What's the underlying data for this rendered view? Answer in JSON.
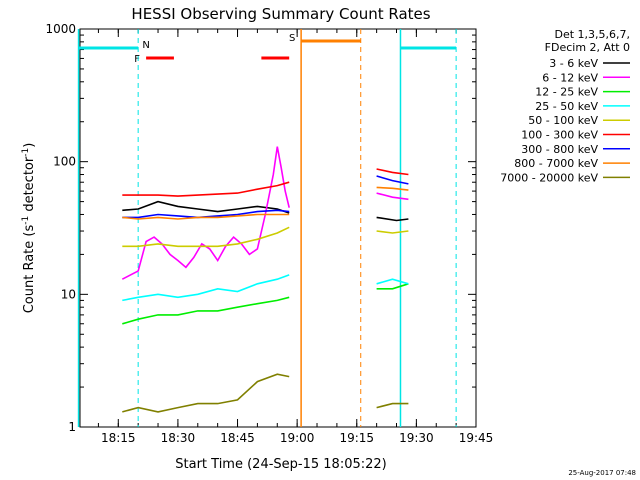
{
  "chart_data": {
    "type": "line",
    "title": "HESSI Observing Summary Count Rates",
    "xlabel": "Start Time (24-Sep-15 18:05:22)",
    "ylabel_main": "Count Rate (s",
    "ylabel_sup1": "-1",
    "ylabel_mid": " detector",
    "ylabel_sup2": "-1",
    "ylabel_end": ")",
    "yscale": "log",
    "xlim": [
      "18:05:22",
      "19:45:00"
    ],
    "ylim": [
      1,
      1000
    ],
    "x_ticks": [
      "18:15",
      "18:30",
      "18:45",
      "19:00",
      "19:15",
      "19:30",
      "19:45"
    ],
    "y_ticks": [
      "1",
      "10",
      "100",
      "1000"
    ],
    "legend_header": [
      "Det 1,3,5,6,7,",
      "FDecim 2, Att 0"
    ],
    "legend_position": "right",
    "timestamp": "25-Aug-2017 07:48",
    "flags": [
      {
        "label": "F",
        "color": "#ff0000",
        "intervals": [
          [
            "18:22",
            "18:29"
          ],
          [
            "18:51",
            "18:58"
          ]
        ]
      },
      {
        "label": "N",
        "color": "#00e5e5",
        "intervals": [
          [
            "18:05",
            "18:20"
          ],
          [
            "19:26",
            "19:40"
          ]
        ]
      },
      {
        "label": "S",
        "color": "#ff8000",
        "intervals": [
          [
            "19:01",
            "19:16"
          ]
        ]
      }
    ],
    "series": [
      {
        "name": "3 - 6 keV",
        "color": "#000000"
      },
      {
        "name": "6 - 12 keV",
        "color": "#ff00ff"
      },
      {
        "name": "12 - 25 keV",
        "color": "#00ee00"
      },
      {
        "name": "25 - 50 keV",
        "color": "#00ffff"
      },
      {
        "name": "50 - 100 keV",
        "color": "#cccc00"
      },
      {
        "name": "100 - 300 keV",
        "color": "#ff0000"
      },
      {
        "name": "300 - 800 keV",
        "color": "#0000ff"
      },
      {
        "name": "800 - 7000 keV",
        "color": "#ff8000"
      },
      {
        "name": "7000 - 20000 keV",
        "color": "#808000"
      }
    ],
    "data": {
      "3 - 6 keV": [
        [
          "18:16",
          43
        ],
        [
          "18:20",
          44
        ],
        [
          "18:25",
          50
        ],
        [
          "18:30",
          46
        ],
        [
          "18:35",
          44
        ],
        [
          "18:40",
          42
        ],
        [
          "18:45",
          44
        ],
        [
          "18:50",
          46
        ],
        [
          "18:55",
          44
        ],
        [
          "18:58",
          41
        ],
        [
          "19:20",
          38
        ],
        [
          "19:25",
          36
        ],
        [
          "19:28",
          37
        ]
      ],
      "6 - 12 keV": [
        [
          "18:16",
          13
        ],
        [
          "18:20",
          15
        ],
        [
          "18:22",
          25
        ],
        [
          "18:24",
          27
        ],
        [
          "18:26",
          24
        ],
        [
          "18:28",
          20
        ],
        [
          "18:30",
          18
        ],
        [
          "18:32",
          16
        ],
        [
          "18:34",
          19
        ],
        [
          "18:36",
          24
        ],
        [
          "18:38",
          22
        ],
        [
          "18:40",
          18
        ],
        [
          "18:42",
          23
        ],
        [
          "18:44",
          27
        ],
        [
          "18:46",
          24
        ],
        [
          "18:48",
          20
        ],
        [
          "18:50",
          22
        ],
        [
          "18:52",
          40
        ],
        [
          "18:54",
          80
        ],
        [
          "18:55",
          130
        ],
        [
          "18:56",
          90
        ],
        [
          "18:57",
          60
        ],
        [
          "18:58",
          45
        ],
        [
          "19:20",
          58
        ],
        [
          "19:24",
          54
        ],
        [
          "19:28",
          52
        ]
      ],
      "12 - 25 keV": [
        [
          "18:16",
          6
        ],
        [
          "18:20",
          6.5
        ],
        [
          "18:25",
          7
        ],
        [
          "18:30",
          7
        ],
        [
          "18:35",
          7.5
        ],
        [
          "18:40",
          7.5
        ],
        [
          "18:45",
          8
        ],
        [
          "18:50",
          8.5
        ],
        [
          "18:55",
          9
        ],
        [
          "18:58",
          9.5
        ],
        [
          "19:20",
          11
        ],
        [
          "19:24",
          11
        ],
        [
          "19:28",
          12
        ]
      ],
      "25 - 50 keV": [
        [
          "18:16",
          9
        ],
        [
          "18:20",
          9.5
        ],
        [
          "18:25",
          10
        ],
        [
          "18:30",
          9.5
        ],
        [
          "18:35",
          10
        ],
        [
          "18:40",
          11
        ],
        [
          "18:45",
          10.5
        ],
        [
          "18:50",
          12
        ],
        [
          "18:55",
          13
        ],
        [
          "18:58",
          14
        ],
        [
          "19:20",
          12
        ],
        [
          "19:24",
          13
        ],
        [
          "19:28",
          12
        ]
      ],
      "50 - 100 keV": [
        [
          "18:16",
          23
        ],
        [
          "18:20",
          23
        ],
        [
          "18:25",
          24
        ],
        [
          "18:30",
          23
        ],
        [
          "18:35",
          23
        ],
        [
          "18:40",
          23
        ],
        [
          "18:45",
          24
        ],
        [
          "18:50",
          26
        ],
        [
          "18:55",
          29
        ],
        [
          "18:58",
          32
        ],
        [
          "19:20",
          30
        ],
        [
          "19:24",
          29
        ],
        [
          "19:28",
          30
        ]
      ],
      "100 - 300 keV": [
        [
          "18:16",
          56
        ],
        [
          "18:20",
          56
        ],
        [
          "18:25",
          56
        ],
        [
          "18:30",
          55
        ],
        [
          "18:35",
          56
        ],
        [
          "18:40",
          57
        ],
        [
          "18:45",
          58
        ],
        [
          "18:50",
          62
        ],
        [
          "18:55",
          66
        ],
        [
          "18:58",
          70
        ],
        [
          "19:20",
          88
        ],
        [
          "19:24",
          83
        ],
        [
          "19:28",
          80
        ]
      ],
      "300 - 800 keV": [
        [
          "18:16",
          38
        ],
        [
          "18:20",
          38
        ],
        [
          "18:25",
          40
        ],
        [
          "18:30",
          39
        ],
        [
          "18:35",
          38
        ],
        [
          "18:40",
          39
        ],
        [
          "18:45",
          40
        ],
        [
          "18:50",
          42
        ],
        [
          "18:55",
          43
        ],
        [
          "18:58",
          42
        ],
        [
          "19:20",
          78
        ],
        [
          "19:24",
          72
        ],
        [
          "19:28",
          68
        ]
      ],
      "800 - 7000 keV": [
        [
          "18:16",
          38
        ],
        [
          "18:20",
          37
        ],
        [
          "18:25",
          38
        ],
        [
          "18:30",
          37
        ],
        [
          "18:35",
          38
        ],
        [
          "18:40",
          38
        ],
        [
          "18:45",
          39
        ],
        [
          "18:50",
          40
        ],
        [
          "18:55",
          40
        ],
        [
          "18:58",
          40
        ],
        [
          "19:20",
          64
        ],
        [
          "19:24",
          63
        ],
        [
          "19:28",
          61
        ]
      ],
      "7000 - 20000 keV": [
        [
          "18:16",
          1.3
        ],
        [
          "18:20",
          1.4
        ],
        [
          "18:25",
          1.3
        ],
        [
          "18:30",
          1.4
        ],
        [
          "18:35",
          1.5
        ],
        [
          "18:40",
          1.5
        ],
        [
          "18:45",
          1.6
        ],
        [
          "18:50",
          2.2
        ],
        [
          "18:55",
          2.5
        ],
        [
          "18:58",
          2.4
        ],
        [
          "19:20",
          1.4
        ],
        [
          "19:24",
          1.5
        ],
        [
          "19:28",
          1.5
        ]
      ]
    }
  }
}
